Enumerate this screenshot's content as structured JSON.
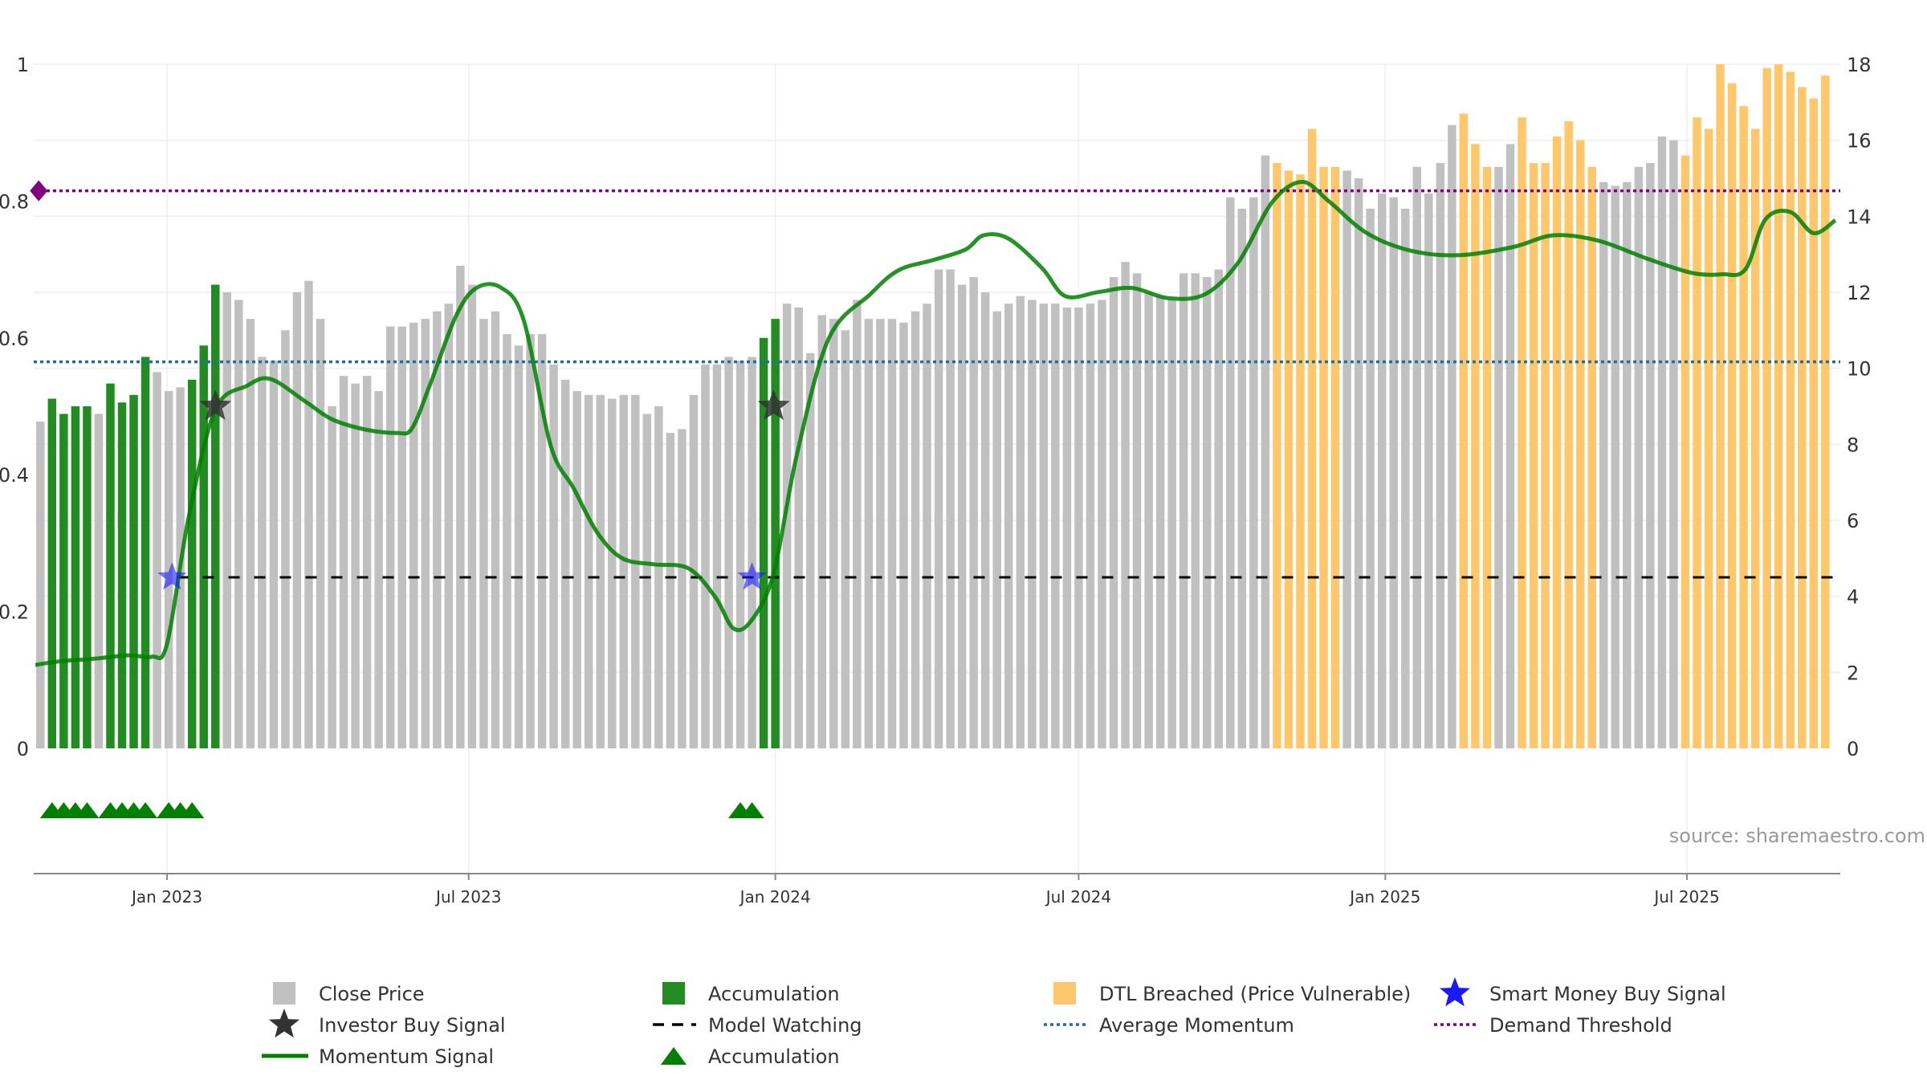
{
  "chart_data": {
    "type": "bar",
    "title": "",
    "xlabel": "",
    "ylabel": "",
    "source": "source: sharemaestro.com",
    "colors": {
      "close": "#c0c0c0",
      "accumulation": "#228b22",
      "dtl": "#ffc76b",
      "momentum": "#008000",
      "model_watching": "#000000",
      "average_momentum": "#1f6f9f",
      "demand_threshold": "#800080",
      "smart_money": "#1a1aff",
      "investor_star": "#333333"
    },
    "left_axis": {
      "ylim": [
        0,
        1
      ],
      "ticks": [
        0,
        0.2,
        0.4,
        0.6,
        0.8,
        1
      ],
      "tick_labels": [
        "0",
        "0.2",
        "0.4",
        "0.6",
        "0.8",
        "1"
      ]
    },
    "right_axis": {
      "ylim": [
        0,
        18
      ],
      "ticks": [
        0,
        2,
        4,
        6,
        8,
        10,
        12,
        14,
        16,
        18
      ],
      "tick_labels": [
        "0",
        "2",
        "4",
        "6",
        "8",
        "10",
        "12",
        "14",
        "16",
        "18"
      ]
    },
    "x_range": [
      "2022-10-13",
      "2025-10-01"
    ],
    "x_ticks": [
      "2023-01-01",
      "2023-07-01",
      "2024-01-01",
      "2024-07-01",
      "2025-01-01",
      "2025-07-01"
    ],
    "x_tick_labels": [
      "Jan 2023",
      "Jul 2023",
      "Jan 2024",
      "Jul 2024",
      "Jan 2025",
      "Jul 2025"
    ],
    "bar_start": "2022-10-17",
    "bar_interval_days": 7,
    "close_prices": [
      8.6,
      9.2,
      8.8,
      9.0,
      9.0,
      8.8,
      9.6,
      9.1,
      9.3,
      10.3,
      9.9,
      9.4,
      9.5,
      9.7,
      10.6,
      12.2,
      12.0,
      11.8,
      11.3,
      10.3,
      10.2,
      11.0,
      12.0,
      12.3,
      11.3,
      9.0,
      9.8,
      9.6,
      9.8,
      9.4,
      11.1,
      11.1,
      11.2,
      11.3,
      11.5,
      11.7,
      12.7,
      12.2,
      11.3,
      11.5,
      10.9,
      10.6,
      10.9,
      10.9,
      10.1,
      9.7,
      9.4,
      9.3,
      9.3,
      9.2,
      9.3,
      9.3,
      8.8,
      9.0,
      8.3,
      8.4,
      9.3,
      10.1,
      10.1,
      10.3,
      10.2,
      10.3,
      10.8,
      11.3,
      11.7,
      11.6,
      10.4,
      11.4,
      11.3,
      11.0,
      11.8,
      11.3,
      11.3,
      11.3,
      11.2,
      11.5,
      11.7,
      12.6,
      12.6,
      12.2,
      12.4,
      12.0,
      11.5,
      11.7,
      11.9,
      11.8,
      11.7,
      11.7,
      11.6,
      11.6,
      11.7,
      11.8,
      12.4,
      12.8,
      12.5,
      12.0,
      11.9,
      11.8,
      12.5,
      12.5,
      12.4,
      12.6,
      14.5,
      14.2,
      14.5,
      15.6,
      15.4,
      15.2,
      15.1,
      16.3,
      15.3,
      15.3,
      15.2,
      15.0,
      14.2,
      14.6,
      14.5,
      14.2,
      15.3,
      14.6,
      15.4,
      16.4,
      16.7,
      15.9,
      15.3,
      15.3,
      15.9,
      16.6,
      15.4,
      15.4,
      16.1,
      16.5,
      16.0,
      15.3,
      14.9,
      14.8,
      14.9,
      15.3,
      15.4,
      16.1,
      16.0,
      15.6,
      16.6,
      16.3,
      18.0,
      17.5,
      16.9,
      16.3,
      17.9,
      18.0,
      17.8,
      17.4,
      17.1,
      17.7
    ],
    "bar_colors": [
      "close",
      "acc",
      "acc",
      "acc",
      "acc",
      "close",
      "acc",
      "acc",
      "acc",
      "acc",
      "close",
      "close",
      "close",
      "acc",
      "acc",
      "acc",
      "close",
      "close",
      "close",
      "close",
      "close",
      "close",
      "close",
      "close",
      "close",
      "close",
      "close",
      "close",
      "close",
      "close",
      "close",
      "close",
      "close",
      "close",
      "close",
      "close",
      "close",
      "close",
      "close",
      "close",
      "close",
      "close",
      "close",
      "close",
      "close",
      "close",
      "close",
      "close",
      "close",
      "close",
      "close",
      "close",
      "close",
      "close",
      "close",
      "close",
      "close",
      "close",
      "close",
      "close",
      "close",
      "close",
      "acc",
      "acc",
      "close",
      "close",
      "close",
      "close",
      "close",
      "close",
      "close",
      "close",
      "close",
      "close",
      "close",
      "close",
      "close",
      "close",
      "close",
      "close",
      "close",
      "close",
      "close",
      "close",
      "close",
      "close",
      "close",
      "close",
      "close",
      "close",
      "close",
      "close",
      "close",
      "close",
      "close",
      "close",
      "close",
      "close",
      "close",
      "close",
      "close",
      "close",
      "close",
      "close",
      "close",
      "close",
      "dtl",
      "dtl",
      "dtl",
      "dtl",
      "dtl",
      "dtl",
      "close",
      "close",
      "close",
      "close",
      "close",
      "close",
      "close",
      "close",
      "close",
      "close",
      "dtl",
      "dtl",
      "dtl",
      "close",
      "close",
      "dtl",
      "dtl",
      "dtl",
      "dtl",
      "dtl",
      "dtl",
      "dtl",
      "close",
      "close",
      "close",
      "close",
      "close",
      "close",
      "close",
      "dtl",
      "dtl",
      "dtl",
      "dtl",
      "dtl",
      "dtl",
      "dtl",
      "dtl",
      "dtl",
      "dtl",
      "dtl",
      "dtl",
      "dtl",
      "dtl",
      "dtl"
    ],
    "momentum": {
      "x": [
        "2022-10-14",
        "2022-10-28",
        "2022-11-18",
        "2022-12-09",
        "2022-12-23",
        "2023-01-01",
        "2023-01-14",
        "2023-01-30",
        "2023-02-18",
        "2023-03-04",
        "2023-03-25",
        "2023-04-10",
        "2023-04-30",
        "2023-05-19",
        "2023-05-28",
        "2023-06-08",
        "2023-06-23",
        "2023-07-05",
        "2023-07-20",
        "2023-08-03",
        "2023-08-19",
        "2023-09-02",
        "2023-09-16",
        "2023-10-01",
        "2023-10-20",
        "2023-11-10",
        "2023-11-26",
        "2023-12-07",
        "2023-12-18",
        "2023-12-31",
        "2024-01-14",
        "2024-02-02",
        "2024-02-27",
        "2024-03-15",
        "2024-04-05",
        "2024-04-24",
        "2024-05-05",
        "2024-05-20",
        "2024-06-09",
        "2024-06-23",
        "2024-07-13",
        "2024-08-02",
        "2024-08-24",
        "2024-09-15",
        "2024-10-05",
        "2024-10-25",
        "2024-11-12",
        "2024-11-28",
        "2024-12-21",
        "2025-01-17",
        "2025-02-15",
        "2025-03-19",
        "2025-04-12",
        "2025-05-09",
        "2025-06-08",
        "2025-07-04",
        "2025-07-22",
        "2025-08-05",
        "2025-08-17",
        "2025-09-01",
        "2025-09-15",
        "2025-09-28"
      ],
      "y": [
        0.122,
        0.127,
        0.131,
        0.136,
        0.134,
        0.153,
        0.338,
        0.495,
        0.53,
        0.54,
        0.507,
        0.481,
        0.466,
        0.461,
        0.468,
        0.533,
        0.63,
        0.672,
        0.674,
        0.626,
        0.444,
        0.38,
        0.316,
        0.278,
        0.269,
        0.263,
        0.221,
        0.175,
        0.188,
        0.256,
        0.43,
        0.599,
        0.664,
        0.699,
        0.714,
        0.729,
        0.75,
        0.745,
        0.702,
        0.661,
        0.667,
        0.673,
        0.658,
        0.664,
        0.711,
        0.798,
        0.828,
        0.8,
        0.753,
        0.727,
        0.721,
        0.733,
        0.75,
        0.742,
        0.715,
        0.695,
        0.693,
        0.7,
        0.773,
        0.784,
        0.753,
        0.772
      ],
      "ylim": [
        0,
        1
      ]
    },
    "average_momentum": 0.565,
    "model_watching_level": 0.25,
    "demand_threshold": 0.815,
    "investor_buy_signals": [
      {
        "x": "2023-01-30",
        "y": 0.5
      },
      {
        "x": "2023-12-31",
        "y": 0.5
      }
    ],
    "smart_money_buy_signals": [
      {
        "x": "2023-01-04",
        "y": 0.25
      },
      {
        "x": "2023-12-18",
        "y": 0.25
      }
    ],
    "demand_threshold_marker": {
      "x": "2022-10-16",
      "y": 0.815
    },
    "model_watching_start": "2023-01-07",
    "accumulation_triangles": [
      "2022-10-24",
      "2022-10-31",
      "2022-11-07",
      "2022-11-14",
      "2022-11-28",
      "2022-12-05",
      "2022-12-12",
      "2022-12-19",
      "2023-01-02",
      "2023-01-09",
      "2023-01-16",
      "2023-12-11",
      "2023-12-18"
    ],
    "legend": {
      "position": "bottom",
      "items": [
        {
          "key": "close",
          "label": "Close Price",
          "symbol": "square"
        },
        {
          "key": "accumulation",
          "label": "Accumulation",
          "symbol": "square"
        },
        {
          "key": "dtl",
          "label": "DTL Breached (Price Vulnerable)",
          "symbol": "square"
        },
        {
          "key": "smart_money",
          "label": "Smart Money Buy Signal",
          "symbol": "star"
        },
        {
          "key": "investor_star",
          "label": "Investor Buy Signal",
          "symbol": "star"
        },
        {
          "key": "model_watching",
          "label": "Model Watching",
          "symbol": "dash"
        },
        {
          "key": "average_momentum",
          "label": "Average Momentum",
          "symbol": "dot"
        },
        {
          "key": "demand_threshold",
          "label": "Demand Threshold",
          "symbol": "dot"
        },
        {
          "key": "momentum",
          "label": "Momentum Signal",
          "symbol": "line"
        },
        {
          "key": "accumulation",
          "label": "Accumulation",
          "symbol": "triangle"
        }
      ]
    },
    "grid": true
  }
}
